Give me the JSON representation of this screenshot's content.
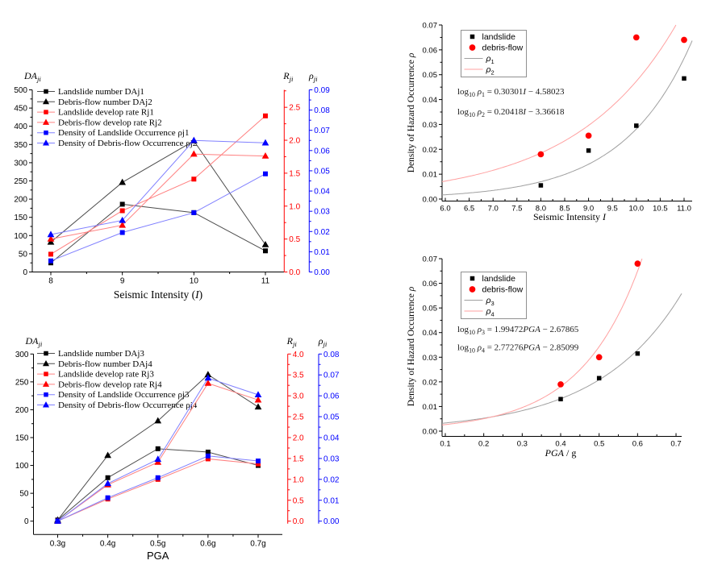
{
  "figure": {
    "background": "#ffffff",
    "accent_colors": {
      "black": "#000000",
      "red": "#ff0000",
      "blue": "#0000ff",
      "gray_curve": "#a0a0a0",
      "pink_curve": "#ffa0a0"
    }
  },
  "chart_data": [
    {
      "id": "seismic_multi",
      "type": "line",
      "xlabel_segments": [
        {
          "t": "Seismic Intensity (",
          "s": "n"
        },
        {
          "t": "I",
          "s": "i"
        },
        {
          "t": ")",
          "s": "n"
        }
      ],
      "x_categories": [
        "8",
        "9",
        "10",
        "11"
      ],
      "axes": {
        "left": {
          "title": [
            {
              "t": "DA",
              "s": "i"
            },
            {
              "t": "ji",
              "s": "subi"
            }
          ],
          "min": 0,
          "max": 500,
          "tick_step": 50,
          "tick_max": 500,
          "decimals": 0,
          "color": "#000000"
        },
        "right1": {
          "title": [
            {
              "t": "R",
              "s": "i"
            },
            {
              "t": "ji",
              "s": "subi"
            }
          ],
          "min": 0,
          "max": 2.765,
          "tick_step": 0.5,
          "tick_max": 2.5,
          "decimals": 1,
          "color": "#ff0000"
        },
        "right2": {
          "title": [
            {
              "t": "ρ",
              "s": "i"
            },
            {
              "t": "ji",
              "s": "subi"
            }
          ],
          "min": 0,
          "max": 0.09,
          "tick_step": 0.01,
          "tick_max": 0.09,
          "decimals": 2,
          "color": "#0000ff"
        }
      },
      "series": [
        {
          "name": "Landslide number DAj1",
          "axis": "left",
          "marker": "square",
          "marker_color": "#000000",
          "line_color": "#4d4d4d",
          "values": [
            25,
            186,
            163,
            58
          ]
        },
        {
          "name": "Debris-flow number DAj2",
          "axis": "left",
          "marker": "triangle",
          "marker_color": "#000000",
          "line_color": "#4d4d4d",
          "values": [
            82,
            246,
            360,
            75
          ]
        },
        {
          "name": "Landslide develop rate Rj1",
          "axis": "right1",
          "marker": "square",
          "marker_color": "#ff0000",
          "line_color": "#ff8080",
          "values": [
            0.27,
            0.93,
            1.41,
            2.37
          ]
        },
        {
          "name": "Debris-flow develop rate Rj2",
          "axis": "right1",
          "marker": "triangle",
          "marker_color": "#ff0000",
          "line_color": "#ff8080",
          "values": [
            0.5,
            0.71,
            1.79,
            1.76
          ]
        },
        {
          "name": "Density of Landslide Occurrence ρj1",
          "axis": "right2",
          "marker": "square",
          "marker_color": "#0000ff",
          "line_color": "#8080ff",
          "values": [
            0.0055,
            0.0195,
            0.0293,
            0.0485
          ]
        },
        {
          "name": "Density of Debris-flow Occurrence ρj2",
          "axis": "right2",
          "marker": "triangle",
          "marker_color": "#0000ff",
          "line_color": "#8080ff",
          "values": [
            0.0185,
            0.0255,
            0.065,
            0.0638
          ]
        }
      ]
    },
    {
      "id": "pga_multi",
      "type": "line",
      "xlabel_segments": [
        {
          "t": "PGA",
          "s": "n"
        }
      ],
      "x_categories": [
        "0.3g",
        "0.4g",
        "0.5g",
        "0.6g",
        "0.7g"
      ],
      "axes": {
        "left": {
          "title": [
            {
              "t": "DA",
              "s": "i"
            },
            {
              "t": "ji",
              "s": "subi"
            }
          ],
          "min": 0,
          "max": 300,
          "tick_step": 50,
          "tick_max": 300,
          "decimals": 0,
          "color": "#000000"
        },
        "right1": {
          "title": [
            {
              "t": "R",
              "s": "i"
            },
            {
              "t": "ji",
              "s": "subi"
            }
          ],
          "min": 0,
          "max": 4.0,
          "tick_step": 0.5,
          "tick_max": 4.0,
          "decimals": 1,
          "color": "#ff0000"
        },
        "right2": {
          "title": [
            {
              "t": "ρ",
              "s": "i"
            },
            {
              "t": "ji",
              "s": "subi"
            }
          ],
          "min": 0,
          "max": 0.08,
          "tick_step": 0.01,
          "tick_max": 0.08,
          "decimals": 2,
          "color": "#0000ff"
        }
      },
      "series": [
        {
          "name": "Landslide number DAj3",
          "axis": "left",
          "marker": "square",
          "marker_color": "#000000",
          "line_color": "#4d4d4d",
          "values": [
            2,
            78,
            130,
            124,
            100
          ]
        },
        {
          "name": "Debris-flow number DAj4",
          "axis": "left",
          "marker": "triangle",
          "marker_color": "#000000",
          "line_color": "#4d4d4d",
          "values": [
            2,
            118,
            180,
            263,
            205
          ]
        },
        {
          "name": "Landslide develop rate Rj3",
          "axis": "right1",
          "marker": "square",
          "marker_color": "#ff0000",
          "line_color": "#ff8080",
          "values": [
            0,
            0.53,
            1.0,
            1.49,
            1.37
          ]
        },
        {
          "name": "Debris-flow develop rate Rj4",
          "axis": "right1",
          "marker": "triangle",
          "marker_color": "#ff0000",
          "line_color": "#ff8080",
          "values": [
            0,
            0.87,
            1.41,
            3.3,
            2.9
          ]
        },
        {
          "name": "Density of Landslide Occurrence ρj3",
          "axis": "right2",
          "marker": "square",
          "marker_color": "#0000ff",
          "line_color": "#8080ff",
          "values": [
            0,
            0.0112,
            0.0208,
            0.0312,
            0.0288
          ]
        },
        {
          "name": "Density of Debris-flow Occurrence ρj4",
          "axis": "right2",
          "marker": "triangle",
          "marker_color": "#0000ff",
          "line_color": "#8080ff",
          "values": [
            0,
            0.018,
            0.0296,
            0.0685,
            0.0605
          ]
        }
      ]
    },
    {
      "id": "seismic_fit",
      "type": "scatter",
      "ylabel_segments": [
        {
          "t": "Density of Hazard Occurrence ",
          "s": "n"
        },
        {
          "t": "ρ",
          "s": "i"
        }
      ],
      "xlabel_segments": [
        {
          "t": "Seismic Intensity ",
          "s": "n"
        },
        {
          "t": "I",
          "s": "i"
        }
      ],
      "x": {
        "min": 6.0,
        "max": 11.0,
        "step": 0.5,
        "decimals": 1
      },
      "y": {
        "min": 0,
        "max": 0.07,
        "step": 0.01,
        "decimals": 2
      },
      "legend": [
        {
          "label_segments": [
            {
              "t": "landslide",
              "s": "n"
            }
          ],
          "marker": "square",
          "color": "#000000"
        },
        {
          "label_segments": [
            {
              "t": "debris-flow",
              "s": "n"
            }
          ],
          "marker": "circle",
          "color": "#ff0000"
        },
        {
          "label_segments": [
            {
              "t": "ρ",
              "s": "i"
            },
            {
              "t": "1",
              "s": "sub"
            }
          ],
          "marker": "line",
          "color": "#a0a0a0"
        },
        {
          "label_segments": [
            {
              "t": "ρ",
              "s": "i"
            },
            {
              "t": "2",
              "s": "sub"
            }
          ],
          "marker": "line",
          "color": "#ffa0a0"
        }
      ],
      "equations": [
        {
          "segments": [
            {
              "t": "log",
              "s": "n"
            },
            {
              "t": "10",
              "s": "sub"
            },
            {
              "t": " ",
              "s": "n"
            },
            {
              "t": "ρ",
              "s": "i"
            },
            {
              "t": "1",
              "s": "sub"
            },
            {
              "t": " = 0.30301",
              "s": "n"
            },
            {
              "t": "I",
              "s": "i"
            },
            {
              "t": " − 4.58023",
              "s": "n"
            }
          ]
        },
        {
          "segments": [
            {
              "t": "log",
              "s": "n"
            },
            {
              "t": "10",
              "s": "sub"
            },
            {
              "t": " ",
              "s": "n"
            },
            {
              "t": "ρ",
              "s": "i"
            },
            {
              "t": "2",
              "s": "sub"
            },
            {
              "t": " = 0.20418",
              "s": "n"
            },
            {
              "t": "I",
              "s": "i"
            },
            {
              "t": " − 3.36618",
              "s": "n"
            }
          ]
        }
      ],
      "points": [
        {
          "name": "landslide",
          "marker": "square",
          "color": "#000000",
          "data": [
            [
              8,
              0.0055
            ],
            [
              9,
              0.0195
            ],
            [
              10,
              0.0295
            ],
            [
              11,
              0.0485
            ]
          ]
        },
        {
          "name": "debris-flow",
          "marker": "circle",
          "color": "#ff0000",
          "data": [
            [
              8,
              0.018
            ],
            [
              9,
              0.0255
            ],
            [
              10,
              0.065
            ],
            [
              11,
              0.064
            ]
          ]
        }
      ],
      "curves": [
        {
          "name": "rho1",
          "slope": 0.30301,
          "intercept": -4.58023,
          "color": "#a0a0a0"
        },
        {
          "name": "rho2",
          "slope": 0.20418,
          "intercept": -3.36618,
          "color": "#ffa0a0"
        }
      ]
    },
    {
      "id": "pga_fit",
      "type": "scatter",
      "ylabel_segments": [
        {
          "t": "Density of Hazard Occurrence ",
          "s": "n"
        },
        {
          "t": "ρ",
          "s": "i"
        }
      ],
      "xlabel_segments": [
        {
          "t": "PGA",
          "s": "i"
        },
        {
          "t": " / g",
          "s": "n"
        }
      ],
      "x": {
        "min": 0.1,
        "max": 0.7,
        "step": 0.1,
        "decimals": 1
      },
      "y": {
        "min": 0,
        "max": 0.07,
        "step": 0.01,
        "decimals": 2
      },
      "legend": [
        {
          "label_segments": [
            {
              "t": "landslide",
              "s": "n"
            }
          ],
          "marker": "square",
          "color": "#000000"
        },
        {
          "label_segments": [
            {
              "t": "debris-flow",
              "s": "n"
            }
          ],
          "marker": "circle",
          "color": "#ff0000"
        },
        {
          "label_segments": [
            {
              "t": "ρ",
              "s": "i"
            },
            {
              "t": "3",
              "s": "sub"
            }
          ],
          "marker": "line",
          "color": "#a0a0a0"
        },
        {
          "label_segments": [
            {
              "t": "ρ",
              "s": "i"
            },
            {
              "t": "4",
              "s": "sub"
            }
          ],
          "marker": "line",
          "color": "#ffa0a0"
        }
      ],
      "equations": [
        {
          "segments": [
            {
              "t": "log",
              "s": "n"
            },
            {
              "t": "10",
              "s": "sub"
            },
            {
              "t": " ",
              "s": "n"
            },
            {
              "t": "ρ",
              "s": "i"
            },
            {
              "t": "3",
              "s": "sub"
            },
            {
              "t": " = 1.99472",
              "s": "n"
            },
            {
              "t": "PGA",
              "s": "i"
            },
            {
              "t": " − 2.67865",
              "s": "n"
            }
          ]
        },
        {
          "segments": [
            {
              "t": "log",
              "s": "n"
            },
            {
              "t": "10",
              "s": "sub"
            },
            {
              "t": " ",
              "s": "n"
            },
            {
              "t": "ρ",
              "s": "i"
            },
            {
              "t": "4",
              "s": "sub"
            },
            {
              "t": " = 2.77276",
              "s": "n"
            },
            {
              "t": "PGA",
              "s": "i"
            },
            {
              "t": " − 2.85099",
              "s": "n"
            }
          ]
        }
      ],
      "points": [
        {
          "name": "landslide",
          "marker": "square",
          "color": "#000000",
          "data": [
            [
              0.4,
              0.013
            ],
            [
              0.5,
              0.0215
            ],
            [
              0.6,
              0.0315
            ]
          ]
        },
        {
          "name": "debris-flow",
          "marker": "circle",
          "color": "#ff0000",
          "data": [
            [
              0.4,
              0.019
            ],
            [
              0.5,
              0.03
            ],
            [
              0.6,
              0.068
            ]
          ]
        }
      ],
      "curves": [
        {
          "name": "rho3",
          "slope": 1.99472,
          "intercept": -2.67865,
          "color": "#a0a0a0"
        },
        {
          "name": "rho4",
          "slope": 2.77276,
          "intercept": -2.85099,
          "color": "#ffa0a0"
        }
      ]
    }
  ]
}
